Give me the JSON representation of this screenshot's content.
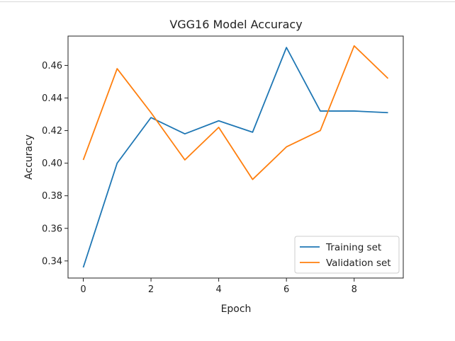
{
  "chart_data": {
    "type": "line",
    "title": "VGG16 Model Accuracy",
    "xlabel": "Epoch",
    "ylabel": "Accuracy",
    "xlim": [
      -0.45,
      9.45
    ],
    "ylim": [
      0.3295,
      0.478
    ],
    "xticks": [
      0,
      2,
      4,
      6,
      8
    ],
    "xtick_labels": [
      "0",
      "2",
      "4",
      "6",
      "8"
    ],
    "yticks": [
      0.34,
      0.36,
      0.38,
      0.4,
      0.42,
      0.44,
      0.46
    ],
    "ytick_labels": [
      "0.34",
      "0.36",
      "0.38",
      "0.40",
      "0.42",
      "0.44",
      "0.46"
    ],
    "grid": false,
    "legend_position": "lower-right",
    "x": [
      0,
      1,
      2,
      3,
      4,
      5,
      6,
      7,
      8,
      9
    ],
    "series": [
      {
        "name": "Training set",
        "color": "#1f77b4",
        "values": [
          0.336,
          0.4,
          0.428,
          0.418,
          0.426,
          0.419,
          0.471,
          0.432,
          0.432,
          0.431
        ]
      },
      {
        "name": "Validation set",
        "color": "#ff7f0e",
        "values": [
          0.402,
          0.458,
          0.431,
          0.402,
          0.422,
          0.39,
          0.41,
          0.42,
          0.472,
          0.452
        ]
      }
    ]
  }
}
